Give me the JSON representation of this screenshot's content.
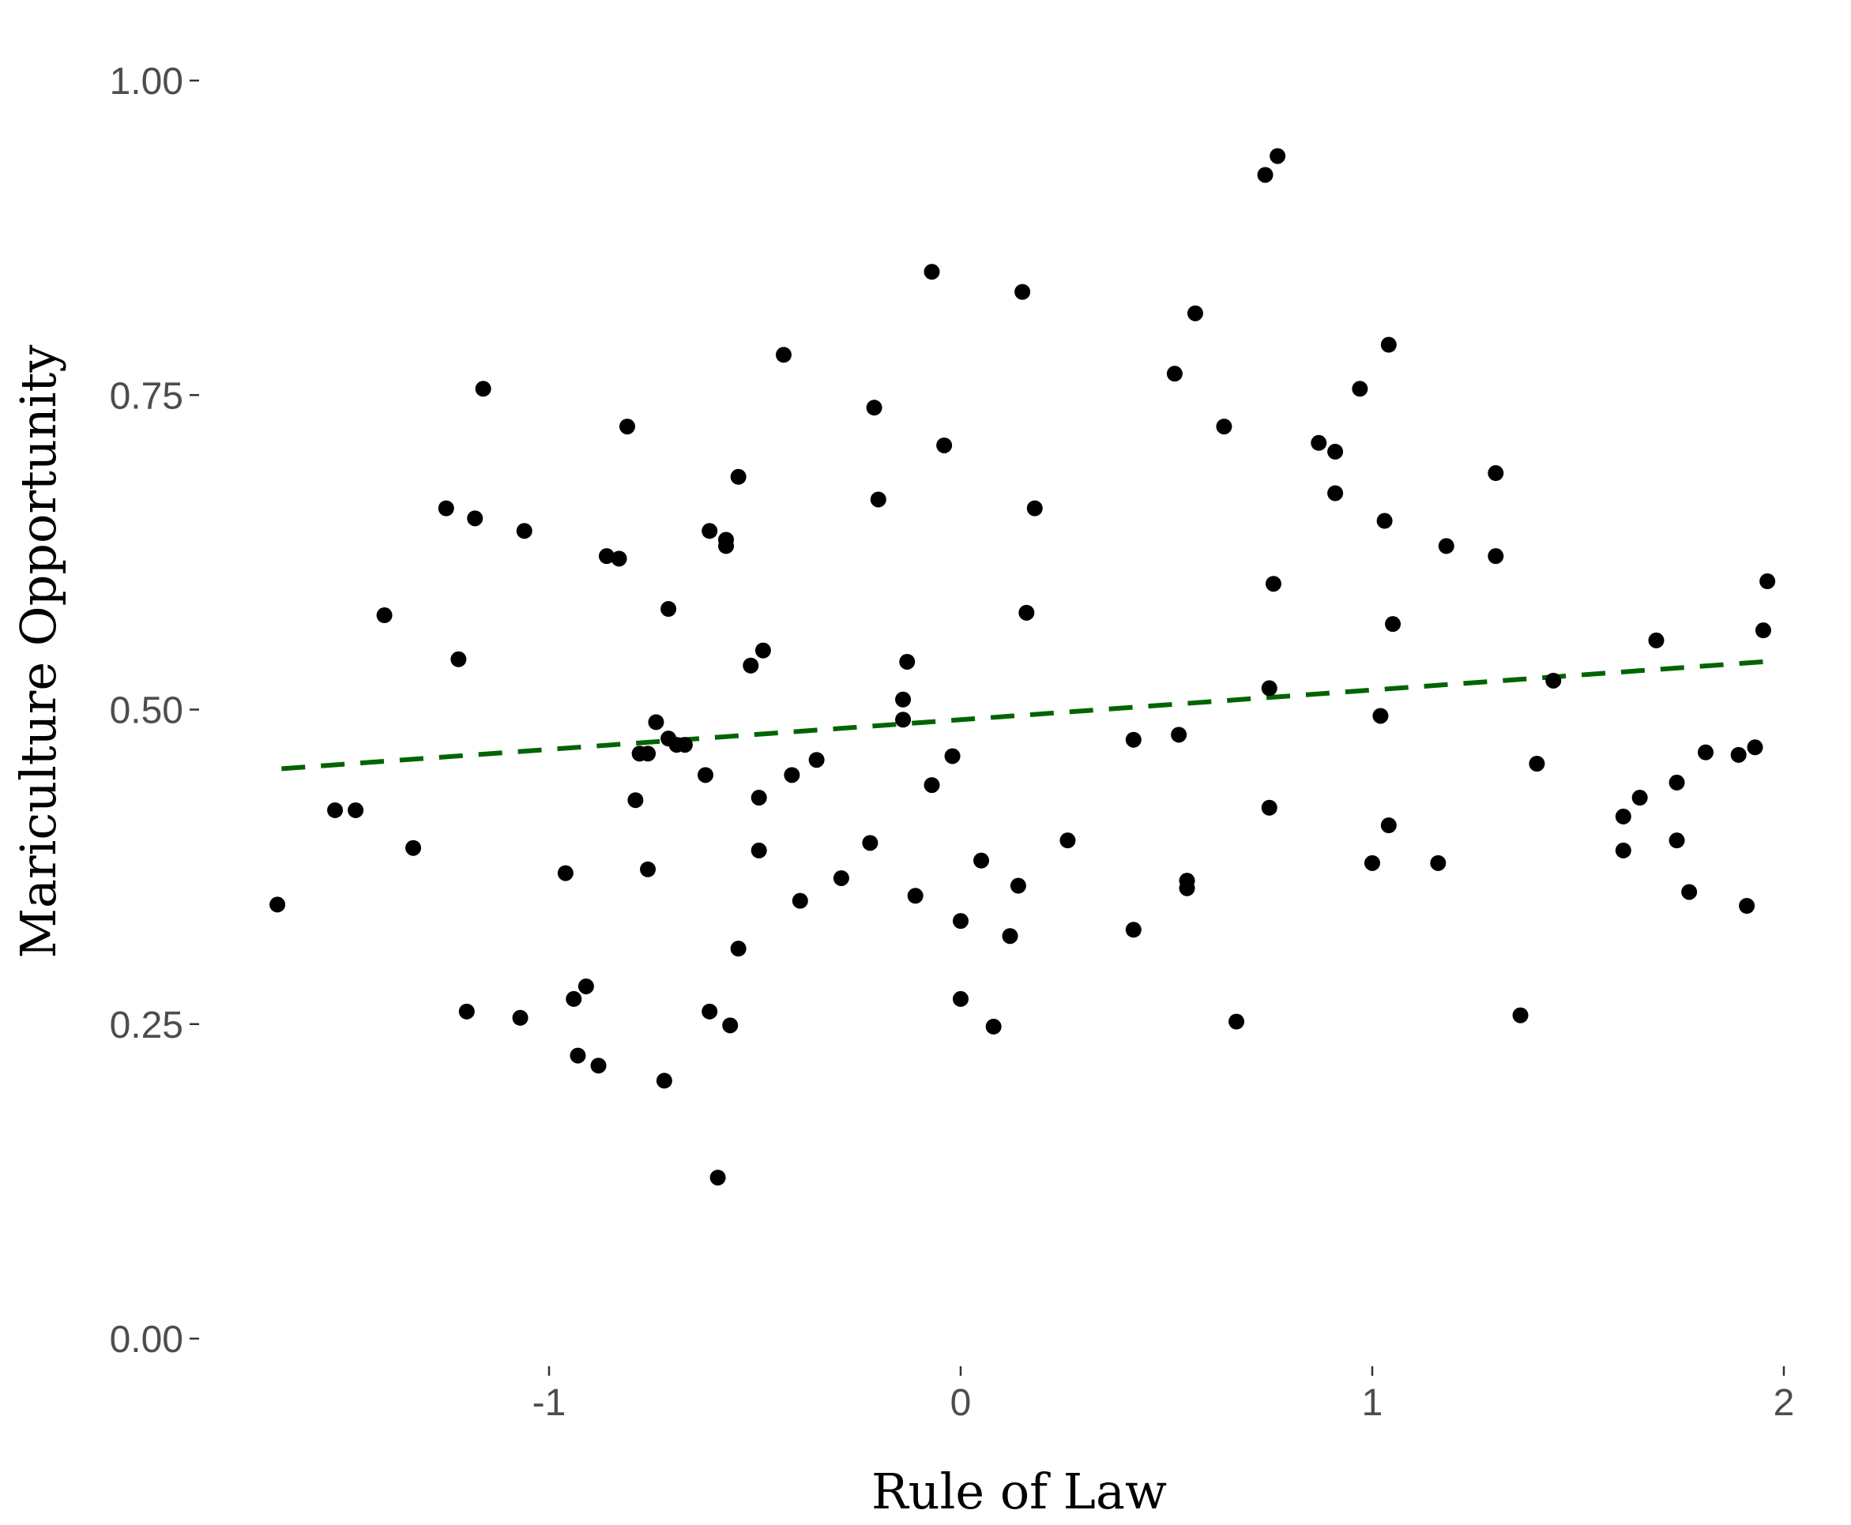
{
  "chart_data": {
    "type": "scatter",
    "xlabel": "Rule of Law",
    "ylabel": "Mariculture Opportunity",
    "xlim": [
      -1.65,
      2.02
    ],
    "ylim": [
      -0.05,
      1.05
    ],
    "x_ticks": [
      -1,
      0,
      1,
      2
    ],
    "x_tick_labels": [
      "-1",
      "0",
      "1",
      "2"
    ],
    "y_ticks": [
      0,
      0.25,
      0.5,
      0.75,
      1.0
    ],
    "y_tick_labels": [
      "0.00",
      "0.25",
      "0.50",
      "0.75",
      "1.00"
    ],
    "grid": false,
    "trend_line": {
      "style": "dashed",
      "color": "#006400",
      "x": [
        -1.65,
        1.95
      ],
      "y": [
        0.453,
        0.538
      ]
    },
    "point_color": "#000000",
    "points": [
      [
        -1.66,
        0.345
      ],
      [
        -1.52,
        0.42
      ],
      [
        -1.47,
        0.42
      ],
      [
        -1.4,
        0.575
      ],
      [
        -1.33,
        0.39
      ],
      [
        -1.25,
        0.66
      ],
      [
        -1.22,
        0.54
      ],
      [
        -1.2,
        0.26
      ],
      [
        -1.18,
        0.652
      ],
      [
        -1.16,
        0.755
      ],
      [
        -1.07,
        0.255
      ],
      [
        -1.06,
        0.642
      ],
      [
        -0.96,
        0.37
      ],
      [
        -0.94,
        0.27
      ],
      [
        -0.93,
        0.225
      ],
      [
        -0.91,
        0.28
      ],
      [
        -0.88,
        0.217
      ],
      [
        -0.86,
        0.622
      ],
      [
        -0.83,
        0.62
      ],
      [
        -0.81,
        0.725
      ],
      [
        -0.79,
        0.428
      ],
      [
        -0.78,
        0.465
      ],
      [
        -0.76,
        0.465
      ],
      [
        -0.76,
        0.373
      ],
      [
        -0.74,
        0.49
      ],
      [
        -0.72,
        0.205
      ],
      [
        -0.71,
        0.58
      ],
      [
        -0.71,
        0.477
      ],
      [
        -0.69,
        0.472
      ],
      [
        -0.67,
        0.472
      ],
      [
        -0.62,
        0.448
      ],
      [
        -0.61,
        0.642
      ],
      [
        -0.61,
        0.26
      ],
      [
        -0.59,
        0.128
      ],
      [
        -0.57,
        0.635
      ],
      [
        -0.57,
        0.63
      ],
      [
        -0.56,
        0.249
      ],
      [
        -0.54,
        0.31
      ],
      [
        -0.54,
        0.685
      ],
      [
        -0.51,
        0.535
      ],
      [
        -0.49,
        0.43
      ],
      [
        -0.49,
        0.388
      ],
      [
        -0.48,
        0.547
      ],
      [
        -0.43,
        0.782
      ],
      [
        -0.41,
        0.448
      ],
      [
        -0.39,
        0.348
      ],
      [
        -0.35,
        0.46
      ],
      [
        -0.29,
        0.366
      ],
      [
        -0.22,
        0.394
      ],
      [
        -0.21,
        0.74
      ],
      [
        -0.2,
        0.667
      ],
      [
        -0.14,
        0.508
      ],
      [
        -0.14,
        0.492
      ],
      [
        -0.13,
        0.538
      ],
      [
        -0.11,
        0.352
      ],
      [
        -0.07,
        0.848
      ],
      [
        -0.07,
        0.44
      ],
      [
        -0.04,
        0.71
      ],
      [
        -0.02,
        0.463
      ],
      [
        0.0,
        0.332
      ],
      [
        0.0,
        0.27
      ],
      [
        0.05,
        0.38
      ],
      [
        0.08,
        0.248
      ],
      [
        0.12,
        0.32
      ],
      [
        0.14,
        0.36
      ],
      [
        0.15,
        0.832
      ],
      [
        0.16,
        0.577
      ],
      [
        0.18,
        0.66
      ],
      [
        0.26,
        0.396
      ],
      [
        0.42,
        0.476
      ],
      [
        0.42,
        0.325
      ],
      [
        0.52,
        0.767
      ],
      [
        0.53,
        0.48
      ],
      [
        0.55,
        0.364
      ],
      [
        0.55,
        0.358
      ],
      [
        0.57,
        0.815
      ],
      [
        0.64,
        0.725
      ],
      [
        0.67,
        0.252
      ],
      [
        0.74,
        0.925
      ],
      [
        0.75,
        0.422
      ],
      [
        0.75,
        0.517
      ],
      [
        0.76,
        0.6
      ],
      [
        0.77,
        0.94
      ],
      [
        0.87,
        0.712
      ],
      [
        0.91,
        0.705
      ],
      [
        0.91,
        0.672
      ],
      [
        0.97,
        0.755
      ],
      [
        1.0,
        0.378
      ],
      [
        1.02,
        0.495
      ],
      [
        1.03,
        0.65
      ],
      [
        1.04,
        0.79
      ],
      [
        1.04,
        0.408
      ],
      [
        1.05,
        0.568
      ],
      [
        1.16,
        0.378
      ],
      [
        1.18,
        0.63
      ],
      [
        1.3,
        0.688
      ],
      [
        1.3,
        0.622
      ],
      [
        1.36,
        0.257
      ],
      [
        1.4,
        0.457
      ],
      [
        1.44,
        0.523
      ],
      [
        1.61,
        0.415
      ],
      [
        1.61,
        0.388
      ],
      [
        1.65,
        0.43
      ],
      [
        1.69,
        0.555
      ],
      [
        1.74,
        0.442
      ],
      [
        1.74,
        0.396
      ],
      [
        1.77,
        0.355
      ],
      [
        1.81,
        0.466
      ],
      [
        1.89,
        0.464
      ],
      [
        1.91,
        0.344
      ],
      [
        1.93,
        0.47
      ],
      [
        1.95,
        0.563
      ],
      [
        1.96,
        0.602
      ]
    ]
  }
}
